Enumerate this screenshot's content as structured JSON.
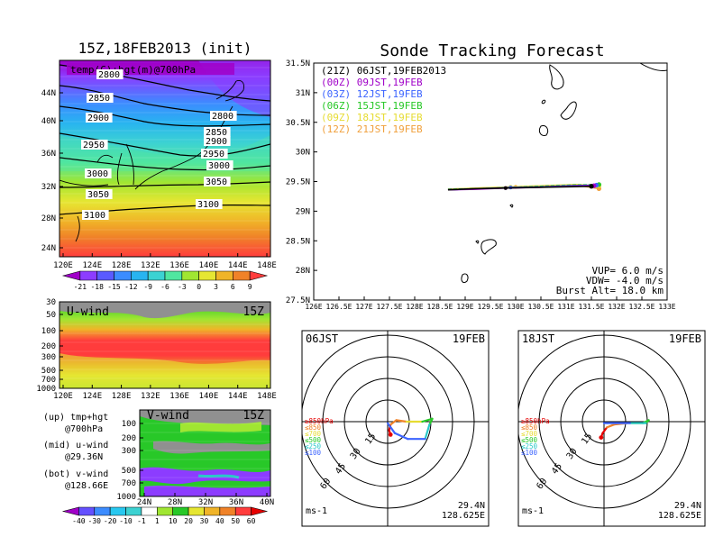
{
  "left_top": {
    "title": "15Z,18FEB2013 (init)",
    "overlay_label": "temp(C)+hgt(m)@700hPa",
    "lat_ticks": [
      "44N",
      "40N",
      "36N",
      "32N",
      "28N",
      "24N"
    ],
    "lon_ticks": [
      "120E",
      "124E",
      "128E",
      "132E",
      "136E",
      "140E",
      "144E",
      "148E"
    ],
    "contour_labels": [
      "2800",
      "2850",
      "2900",
      "2950",
      "3000",
      "3050",
      "3100",
      "2850",
      "2900",
      "2950",
      "3000",
      "3050",
      "3100",
      "2800"
    ],
    "colorbar_labels": [
      "-21",
      "-18",
      "-15",
      "-12",
      "-9",
      "-6",
      "-3",
      "0",
      "3",
      "6",
      "9"
    ],
    "colorbar_colors": [
      "#a000c8",
      "#8c3cff",
      "#5a5aff",
      "#3c8cff",
      "#28b4f0",
      "#3cd2d2",
      "#50e6a0",
      "#a0e632",
      "#e6e632",
      "#f0b428",
      "#f08228",
      "#ff3c3c"
    ]
  },
  "uwind": {
    "label": "U-wind",
    "time": "15Z",
    "y_ticks": [
      "30",
      "50",
      "100",
      "200",
      "300",
      "500",
      "700",
      "1000"
    ],
    "x_ticks": [
      "120E",
      "124E",
      "128E",
      "132E",
      "136E",
      "140E",
      "144E",
      "148E"
    ]
  },
  "vwind": {
    "label": "V-wind",
    "time": "15Z",
    "y_ticks": [
      "100",
      "200",
      "300",
      "500",
      "700",
      "1000"
    ],
    "x_ticks": [
      "24N",
      "28N",
      "32N",
      "36N",
      "40N"
    ],
    "colorbar_labels": [
      "-40",
      "-30",
      "-20",
      "-10",
      "-1",
      "1",
      "10",
      "20",
      "30",
      "40",
      "50",
      "60"
    ]
  },
  "legend_notes": [
    {
      "head": "(up) tmp+hgt",
      "sub": "@700hPa"
    },
    {
      "head": "(mid) u-wind",
      "sub": "@29.36N"
    },
    {
      "head": "(bot) v-wind",
      "sub": "@128.66E"
    }
  ],
  "track": {
    "title": "Sonde Tracking Forecast",
    "legend": [
      {
        "text": "(21Z)  06JST,19FEB2013",
        "color": "#000000"
      },
      {
        "text": "(00Z)  09JST,19FEB",
        "color": "#a000c8"
      },
      {
        "text": "(03Z)  12JST,19FEB",
        "color": "#3c64ff"
      },
      {
        "text": "(06Z)  15JST,19FEB",
        "color": "#28c828"
      },
      {
        "text": "(09Z)  18JST,19FEB",
        "color": "#e6dc32"
      },
      {
        "text": "(12Z)  21JST,19FEB",
        "color": "#f0a03c"
      }
    ],
    "lat_ticks": [
      "31.5N",
      "31N",
      "30.5N",
      "30N",
      "29.5N",
      "29N",
      "28.5N",
      "28N",
      "27.5N"
    ],
    "lon_ticks": [
      "126E",
      "126.5E",
      "127E",
      "127.5E",
      "128E",
      "128.5E",
      "129E",
      "129.5E",
      "130E",
      "130.5E",
      "131E",
      "131.5E",
      "132E",
      "132.5E",
      "133E"
    ],
    "info": [
      "VUP=  6.0  m/s",
      "VDW= -4.0  m/s",
      "Burst Alt= 18.0  km"
    ]
  },
  "chart_data": [
    {
      "type": "line",
      "title": "Sonde Tracking Forecast",
      "xlim": [
        126,
        133
      ],
      "ylim": [
        27.5,
        31.5
      ],
      "series": [
        {
          "name": "(21Z) 06JST,19FEB2013",
          "x": [
            128.66,
            129.2,
            129.8,
            130.3,
            130.9,
            131.5
          ],
          "y": [
            29.36,
            29.38,
            29.39,
            29.4,
            29.41,
            29.42
          ]
        },
        {
          "name": "(00Z) 09JST,19FEB",
          "x": [
            128.66,
            129.2,
            129.8,
            130.4,
            131.0,
            131.55
          ],
          "y": [
            29.36,
            29.37,
            29.39,
            29.4,
            29.42,
            29.43
          ]
        },
        {
          "name": "(03Z) 12JST,19FEB",
          "x": [
            128.66,
            129.3,
            129.9,
            130.5,
            131.1,
            131.6
          ],
          "y": [
            29.36,
            29.38,
            29.4,
            29.41,
            29.43,
            29.44
          ]
        },
        {
          "name": "(06Z) 15JST,19FEB",
          "x": [
            128.66,
            129.3,
            129.9,
            130.5,
            131.1,
            131.65
          ],
          "y": [
            29.37,
            29.38,
            29.4,
            29.42,
            29.44,
            29.45
          ]
        },
        {
          "name": "(09Z) 18JST,19FEB",
          "x": [
            128.66,
            129.3,
            129.9,
            130.6,
            131.2,
            131.65
          ],
          "y": [
            29.37,
            29.39,
            29.41,
            29.43,
            29.45,
            29.43
          ]
        },
        {
          "name": "(12Z) 21JST,19FEB",
          "x": [
            128.66,
            129.3,
            130.0,
            130.6,
            131.2,
            131.65
          ],
          "y": [
            29.37,
            29.39,
            29.41,
            29.43,
            29.44,
            29.38
          ]
        }
      ]
    }
  ],
  "hodo_left": {
    "time": "06JST",
    "date": "19FEB",
    "ring_labels": [
      "15",
      "30",
      "45",
      "60"
    ],
    "levels": [
      "≥850hPa",
      "≤850",
      "≤700",
      "≤500",
      "≤250",
      "≤100"
    ],
    "level_colors": [
      "#e60000",
      "#f08228",
      "#e6dc32",
      "#28c828",
      "#28c8c8",
      "#3c64ff"
    ],
    "lat": "29.4N",
    "lon": "128.625E",
    "unit": "ms-1",
    "profile_u": [
      2,
      1,
      2,
      6,
      13,
      24,
      31,
      29,
      26,
      14,
      5,
      0
    ],
    "profile_v": [
      -9,
      -6,
      -2,
      1,
      0,
      0,
      2,
      -2,
      -12,
      -12,
      -8,
      -1
    ],
    "profile_colors": [
      "#e60000",
      "#e60000",
      "#e60000",
      "#f08228",
      "#f08228",
      "#e6dc32",
      "#28c828",
      "#28c828",
      "#28c8c8",
      "#3c64ff",
      "#3c64ff",
      "#3c64ff"
    ]
  },
  "hodo_right": {
    "time": "18JST",
    "date": "19FEB",
    "ring_labels": [
      "15",
      "30",
      "45",
      "60"
    ],
    "levels": [
      "≥850hPa",
      "≤850",
      "≤700",
      "≤500",
      "≤250",
      "≤100"
    ],
    "level_colors": [
      "#e60000",
      "#f08228",
      "#e6dc32",
      "#28c828",
      "#28c8c8",
      "#3c64ff"
    ],
    "lat": "29.4N",
    "lon": "128.625E",
    "unit": "ms-1",
    "profile_u": [
      -2,
      -1,
      2,
      7,
      16,
      27,
      31,
      29,
      18,
      8,
      2,
      0
    ],
    "profile_v": [
      -11,
      -8,
      -4,
      -2,
      -1,
      -1,
      1,
      -1,
      -1,
      -1,
      -1,
      -1
    ],
    "profile_colors": [
      "#e60000",
      "#e60000",
      "#e60000",
      "#f08228",
      "#f08228",
      "#e6dc32",
      "#28c828",
      "#28c828",
      "#28c8c8",
      "#3c64ff",
      "#3c64ff",
      "#3c64ff"
    ]
  }
}
